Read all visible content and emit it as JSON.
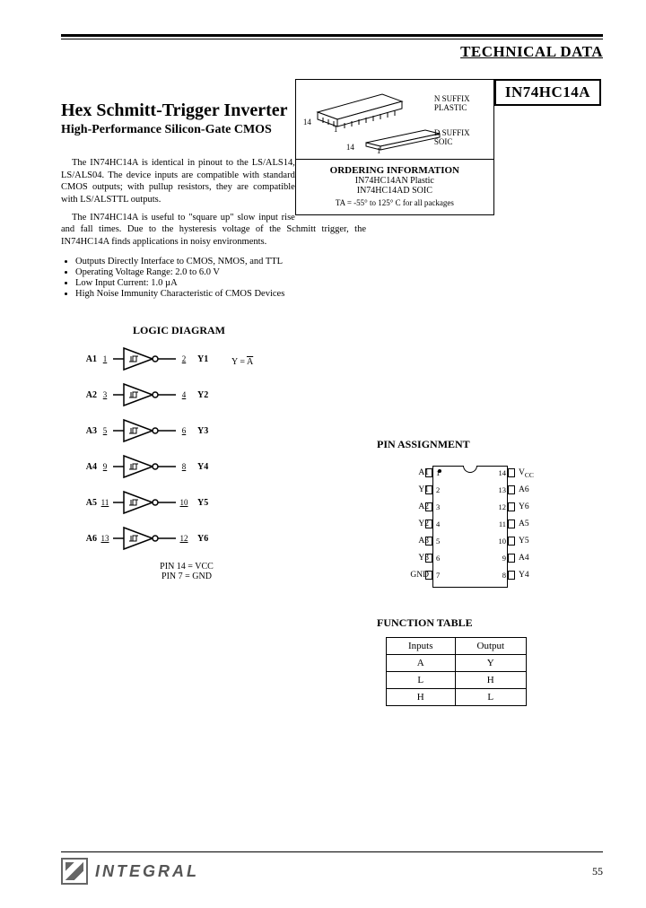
{
  "header": {
    "section": "TECHNICAL DATA",
    "part": "IN74HC14A"
  },
  "title": "Hex Schmitt-Trigger Inverter",
  "subtitle": "High-Performance Silicon-Gate CMOS",
  "package_box": {
    "p1_label": "N SUFFIX PLASTIC",
    "p1_pin": "14",
    "p1_pin1": "1",
    "p2_label": "D SUFFIX SOIC",
    "p2_pin": "14",
    "p2_pin1": "1",
    "ord_head": "ORDERING INFORMATION",
    "ord1": "IN74HC14AN Plastic",
    "ord2": "IN74HC14AD SOIC",
    "temp": "TA = -55° to 125° C for all packages"
  },
  "para1": "The IN74HC14A is identical in pinout to the LS/ALS14, LS/ALS04. The device inputs are compatible with standard CMOS outputs; with pullup resistors, they are compatible with LS/ALSTTL outputs.",
  "para2": "The IN74HC14A is useful to \"square up\" slow input rise and fall times. Due to the hysteresis voltage of the Schmitt trigger, the IN74HC14A finds applications in noisy environments.",
  "bullets": [
    "Outputs Directly Interface to CMOS, NMOS, and TTL",
    "Operating Voltage Range: 2.0 to 6.0 V",
    "Low Input Current: 1.0 µA",
    "High Noise Immunity Characteristic of CMOS Devices"
  ],
  "logic": {
    "head": "LOGIC DIAGRAM",
    "gates": [
      {
        "in": "A1",
        "pin_in": "1",
        "pin_out": "2",
        "out": "Y1"
      },
      {
        "in": "A2",
        "pin_in": "3",
        "pin_out": "4",
        "out": "Y2"
      },
      {
        "in": "A3",
        "pin_in": "5",
        "pin_out": "6",
        "out": "Y3"
      },
      {
        "in": "A4",
        "pin_in": "9",
        "pin_out": "8",
        "out": "Y4"
      },
      {
        "in": "A5",
        "pin_in": "11",
        "pin_out": "10",
        "out": "Y5"
      },
      {
        "in": "A6",
        "pin_in": "13",
        "pin_out": "12",
        "out": "Y6"
      }
    ],
    "equation_pre": "Y = ",
    "equation_bar": "A",
    "note1": "PIN 14 = VCC",
    "note2": "PIN 7 = GND"
  },
  "pins": {
    "head": "PIN ASSIGNMENT",
    "left": [
      "A1",
      "Y1",
      "A2",
      "Y2",
      "A3",
      "Y3",
      "GND"
    ],
    "right": [
      "VCC",
      "A6",
      "Y6",
      "A5",
      "Y5",
      "A4",
      "Y4"
    ],
    "nums_left": [
      "1",
      "2",
      "3",
      "4",
      "5",
      "6",
      "7"
    ],
    "nums_right": [
      "14",
      "13",
      "12",
      "11",
      "10",
      "9",
      "8"
    ]
  },
  "func": {
    "head": "FUNCTION TABLE",
    "h1": "Inputs",
    "h2": "Output",
    "rows": [
      [
        "A",
        "Y"
      ],
      [
        "L",
        "H"
      ],
      [
        "H",
        "L"
      ]
    ]
  },
  "footer": {
    "brand": "INTEGRAL",
    "page": "55"
  },
  "colors": {
    "ink": "#000000",
    "grey": "#666666",
    "bg": "#ffffff"
  }
}
